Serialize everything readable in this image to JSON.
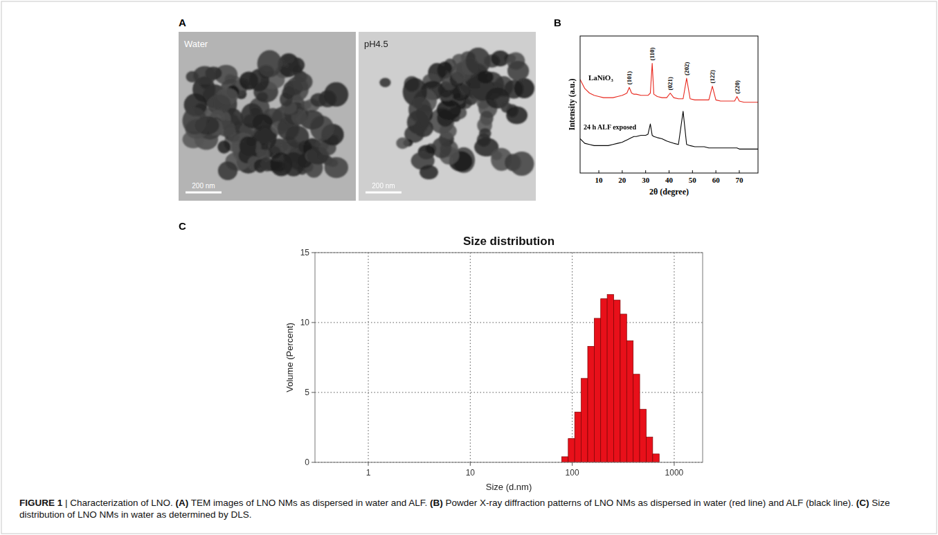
{
  "tem": {
    "panel": "A",
    "images": [
      {
        "label": "Water",
        "scale_bar": "200 nm"
      },
      {
        "label": "pH4.5",
        "scale_bar": "200 nm"
      }
    ]
  },
  "chart_data": [
    {
      "panel": "B",
      "type": "line",
      "x_label": "2θ (degree)",
      "y_label": "Intensity (a.u.)",
      "x": [
        2,
        4,
        6,
        8,
        10,
        12,
        14,
        16,
        18,
        20,
        21,
        22,
        23,
        24,
        25,
        26,
        28,
        30,
        31,
        32,
        32.8,
        33.5,
        35,
        37,
        39,
        40.5,
        42,
        44,
        46,
        47.5,
        49,
        51,
        53,
        55,
        57,
        58.5,
        60,
        62,
        64,
        66,
        68,
        69,
        70,
        72,
        74,
        76,
        78
      ],
      "xlim": [
        2,
        78
      ],
      "xticks": [
        10,
        20,
        30,
        40,
        50,
        60,
        70
      ],
      "ylim": [
        0,
        120
      ],
      "tick_labels": "x",
      "series": [
        {
          "name": "LaNiO₃",
          "color": "#e8261c",
          "values": [
            82,
            74,
            70,
            68,
            67,
            66,
            66,
            66,
            67,
            68,
            69,
            70,
            75,
            70,
            69,
            69,
            68,
            68,
            68,
            70,
            96,
            69,
            67,
            66,
            66,
            70,
            66,
            65,
            65,
            83,
            65,
            64,
            64,
            64,
            64,
            76,
            64,
            63,
            63,
            63,
            63,
            67,
            63,
            62,
            62,
            62,
            62
          ]
        },
        {
          "name": "24 h ALF exposed",
          "color": "#000000",
          "values": [
            30,
            26,
            25,
            24,
            24,
            24,
            24,
            25,
            26,
            27,
            28,
            29,
            30,
            31,
            32,
            32,
            33,
            33,
            34,
            43,
            33,
            32,
            31,
            30,
            28,
            27,
            26,
            25,
            54,
            25,
            24,
            23,
            23,
            23,
            22,
            22,
            22,
            22,
            22,
            22,
            22,
            22,
            21,
            21,
            21,
            21,
            21
          ]
        }
      ],
      "annotations": [
        {
          "x": 23,
          "text": "(101)"
        },
        {
          "x": 32.8,
          "text": "(110)"
        },
        {
          "x": 40.5,
          "text": "(021)"
        },
        {
          "x": 47.5,
          "text": "(202)"
        },
        {
          "x": 58.5,
          "text": "(122)"
        },
        {
          "x": 69,
          "text": "(220)"
        }
      ]
    },
    {
      "panel": "C",
      "type": "histogram",
      "title": "Size distribution",
      "x_label": "Size (d.nm)",
      "y_label": "Volume (Percent)",
      "log": "x",
      "grid": true,
      "xlim": [
        0.3,
        1900
      ],
      "xticks": [
        1,
        10,
        100,
        1000
      ],
      "ylim": [
        0,
        15
      ],
      "yticks": [
        0,
        5,
        10,
        15
      ],
      "bins": [
        78.8,
        91.3,
        105.7,
        122.4,
        141.8,
        164.2,
        190.1,
        220.2,
        255.0,
        295.3,
        342.0,
        396.1,
        458.7,
        531.2,
        615.1,
        712.4
      ],
      "values": [
        0.4,
        1.7,
        3.6,
        6.0,
        8.3,
        10.3,
        11.7,
        12.0,
        11.6,
        10.6,
        8.7,
        6.3,
        3.8,
        1.8,
        0.6
      ],
      "color": "#e8101a"
    }
  ],
  "caption": [
    {
      "text": "FIGURE 1",
      "bold": true
    },
    {
      "text": " | Characterization of LNO. ",
      "bold": false
    },
    {
      "text": "(A)",
      "bold": true
    },
    {
      "text": " TEM images of LNO NMs as dispersed in water and ALF. ",
      "bold": false
    },
    {
      "text": "(B)",
      "bold": true
    },
    {
      "text": " Powder X-ray diffraction patterns of LNO NMs as dispersed in water (red line) and ALF (black line). ",
      "bold": false
    },
    {
      "text": "(C)",
      "bold": true
    },
    {
      "text": " Size distribution of LNO NMs in water as determined by DLS.",
      "bold": false
    }
  ]
}
